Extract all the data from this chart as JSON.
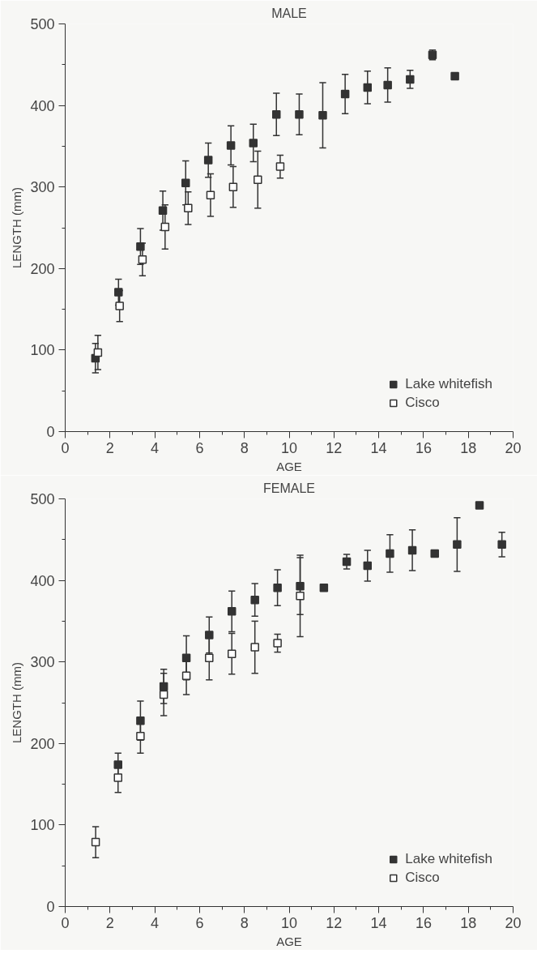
{
  "chart_data": [
    {
      "type": "scatter",
      "title": "MALE",
      "xlabel": "AGE",
      "ylabel": "LENGTH (mm)",
      "xlim": [
        0,
        20
      ],
      "ylim": [
        0,
        500
      ],
      "xticks": [
        0,
        {
          "value": 1,
          "label": null
        },
        2,
        {
          "value": 3,
          "label": null
        },
        4,
        {
          "value": 5,
          "label": null
        },
        6,
        {
          "value": 7,
          "label": null
        },
        8,
        {
          "value": 9,
          "label": null
        },
        10,
        {
          "value": 11,
          "label": null
        },
        12,
        {
          "value": 13,
          "label": null
        },
        14,
        {
          "value": 15,
          "label": null
        },
        16,
        {
          "value": 17,
          "label": null
        },
        18,
        {
          "value": 19,
          "label": null
        },
        20
      ],
      "yticks": [
        0,
        {
          "value": 50,
          "label": null
        },
        100,
        {
          "value": 150,
          "label": null
        },
        200,
        {
          "value": 250,
          "label": null
        },
        300,
        {
          "value": 350,
          "label": null
        },
        400,
        {
          "value": 450,
          "label": null
        },
        500
      ],
      "grid": false,
      "legend": "bottom right",
      "marker": "square",
      "series": [
        {
          "name": "Lake whitefish",
          "color": "#333333",
          "x": [
            1.35,
            2.38,
            3.36,
            4.36,
            5.38,
            6.39,
            7.4,
            8.4,
            9.43,
            10.45,
            11.5,
            12.5,
            13.5,
            14.4,
            15.4,
            16.4,
            17.4
          ],
          "values": [
            90,
            171,
            227,
            271,
            305,
            333,
            351,
            354,
            389,
            389,
            388,
            414,
            422,
            425,
            432,
            462,
            436
          ],
          "errors": [
            18,
            16,
            22,
            24,
            27,
            21,
            24,
            23,
            26,
            25,
            40,
            24,
            20,
            21,
            11,
            6,
            null
          ]
        },
        {
          "name": "Cisco",
          "color": "#ffffff",
          "x": [
            1.46,
            2.43,
            3.45,
            4.46,
            5.49,
            6.49,
            7.5,
            8.6,
            9.6
          ],
          "values": [
            97,
            154,
            211,
            251,
            274,
            290,
            300,
            309,
            325
          ],
          "errors": [
            21,
            19,
            20,
            27,
            20,
            26,
            25,
            35,
            14
          ]
        }
      ]
    },
    {
      "type": "scatter",
      "title": "FEMALE",
      "xlabel": "AGE",
      "ylabel": "LENGTH (mm)",
      "xlim": [
        0,
        20
      ],
      "ylim": [
        0,
        500
      ],
      "xticks": [
        0,
        {
          "value": 1,
          "label": null
        },
        2,
        {
          "value": 3,
          "label": null
        },
        4,
        {
          "value": 5,
          "label": null
        },
        6,
        {
          "value": 7,
          "label": null
        },
        8,
        {
          "value": 9,
          "label": null
        },
        10,
        {
          "value": 11,
          "label": null
        },
        12,
        {
          "value": 13,
          "label": null
        },
        14,
        {
          "value": 15,
          "label": null
        },
        16,
        {
          "value": 17,
          "label": null
        },
        18,
        {
          "value": 19,
          "label": null
        },
        20
      ],
      "yticks": [
        0,
        {
          "value": 50,
          "label": null
        },
        100,
        {
          "value": 150,
          "label": null
        },
        200,
        {
          "value": 250,
          "label": null
        },
        300,
        {
          "value": 350,
          "label": null
        },
        400,
        {
          "value": 450,
          "label": null
        },
        500
      ],
      "grid": false,
      "legend": "bottom right",
      "marker": "square",
      "series": [
        {
          "name": "Lake whitefish",
          "color": "#333333",
          "x": [
            2.36,
            3.36,
            4.4,
            5.41,
            6.43,
            7.44,
            8.47,
            9.48,
            10.49,
            11.55,
            12.57,
            13.5,
            14.5,
            15.5,
            16.5,
            17.5,
            18.5,
            19.5
          ],
          "values": [
            174,
            228,
            270,
            305,
            333,
            362,
            376,
            391,
            393,
            391,
            423,
            418,
            433,
            437,
            433,
            444,
            492,
            444
          ],
          "errors": [
            14,
            24,
            21,
            27,
            22,
            25,
            20,
            22,
            35,
            null,
            9,
            19,
            23,
            25,
            null,
            33,
            null,
            15
          ]
        },
        {
          "name": "Cisco",
          "color": "#ffffff",
          "x": [
            1.36,
            2.36,
            3.36,
            4.4,
            5.41,
            6.43,
            7.44,
            8.47,
            9.48,
            10.49
          ],
          "values": [
            79,
            158,
            209,
            260,
            283,
            305,
            310,
            318,
            323,
            381
          ],
          "errors": [
            19,
            18,
            21,
            26,
            23,
            27,
            25,
            32,
            11,
            50
          ]
        }
      ]
    }
  ]
}
